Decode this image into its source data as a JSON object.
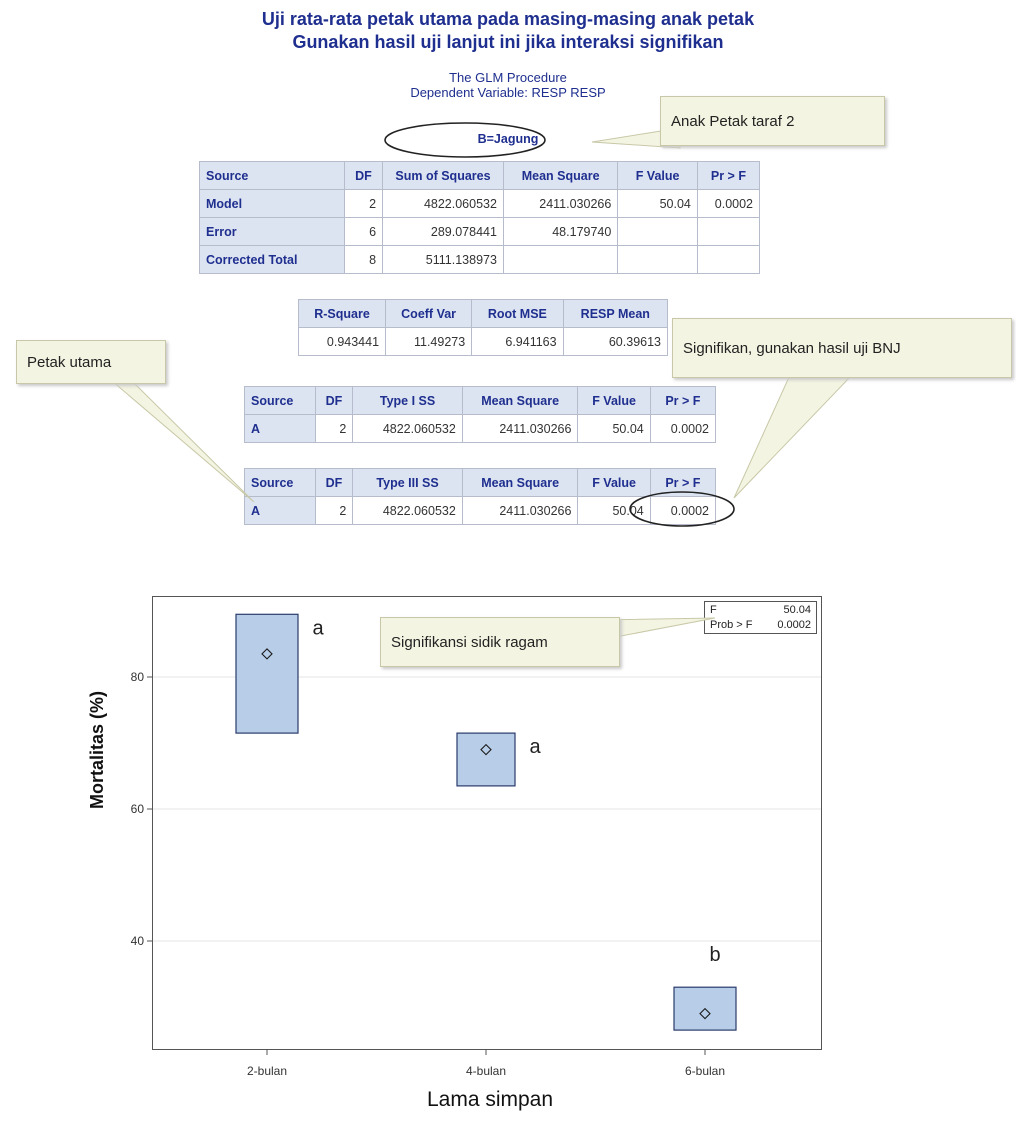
{
  "header": {
    "title_line1": "Uji rata-rata petak utama pada masing-masing anak petak",
    "title_line2": "Gunakan hasil uji lanjut ini jika interaksi signifikan",
    "procedure": "The GLM Procedure",
    "dependent_variable": "Dependent Variable: RESP RESP",
    "subset_label": "B=Jagung"
  },
  "anova_table": {
    "columns": [
      "Source",
      "DF",
      "Sum of Squares",
      "Mean Square",
      "F Value",
      "Pr > F"
    ],
    "rows": [
      {
        "source": "Model",
        "df": "2",
        "ss": "4822.060532",
        "ms": "2411.030266",
        "f": "50.04",
        "p": "0.0002"
      },
      {
        "source": "Error",
        "df": "6",
        "ss": "289.078441",
        "ms": "48.179740",
        "f": "",
        "p": ""
      },
      {
        "source": "Corrected Total",
        "df": "8",
        "ss": "5111.138973",
        "ms": "",
        "f": "",
        "p": ""
      }
    ]
  },
  "fit_table": {
    "columns": [
      "R-Square",
      "Coeff Var",
      "Root MSE",
      "RESP Mean"
    ],
    "values": [
      "0.943441",
      "11.49273",
      "6.941163",
      "60.39613"
    ]
  },
  "type1_table": {
    "columns": [
      "Source",
      "DF",
      "Type I SS",
      "Mean Square",
      "F Value",
      "Pr > F"
    ],
    "row": {
      "source": "A",
      "df": "2",
      "ss": "4822.060532",
      "ms": "2411.030266",
      "f": "50.04",
      "p": "0.0002"
    }
  },
  "type3_table": {
    "columns": [
      "Source",
      "DF",
      "Type III SS",
      "Mean Square",
      "F Value",
      "Pr > F"
    ],
    "row": {
      "source": "A",
      "df": "2",
      "ss": "4822.060532",
      "ms": "2411.030266",
      "f": "50.04",
      "p": "0.0002"
    }
  },
  "callouts": {
    "anak_petak": "Anak Petak taraf 2",
    "petak_utama": "Petak utama",
    "signifikan": "Signifikan, gunakan hasil uji BNJ",
    "sidik_ragam": "Signifikansi sidik ragam"
  },
  "chart_data": {
    "type": "box",
    "xlabel": "Lama simpan",
    "ylabel": "Mortalitas (%)",
    "ylim": [
      25,
      92
    ],
    "yticks": [
      40,
      60,
      80
    ],
    "grid": true,
    "categories": [
      "2-bulan",
      "4-bulan",
      "6-bulan"
    ],
    "boxes": [
      {
        "category": "2-bulan",
        "low": 71.5,
        "high": 89.5,
        "mean": 83.5,
        "letter": "a"
      },
      {
        "category": "4-bulan",
        "low": 63.5,
        "high": 71.5,
        "mean": 69,
        "letter": "a"
      },
      {
        "category": "6-bulan",
        "low": 26.5,
        "high": 33,
        "mean": 29,
        "letter": "b"
      }
    ],
    "inset": {
      "f_label": "F",
      "f_value": "50.04",
      "p_label": "Prob > F",
      "p_value": "0.0002"
    }
  },
  "colors": {
    "title_blue": "#1f2f8f",
    "header_bg": "#dde4f1",
    "box_fill": "#b8cde8",
    "callout_bg": "#f4f4e2"
  }
}
